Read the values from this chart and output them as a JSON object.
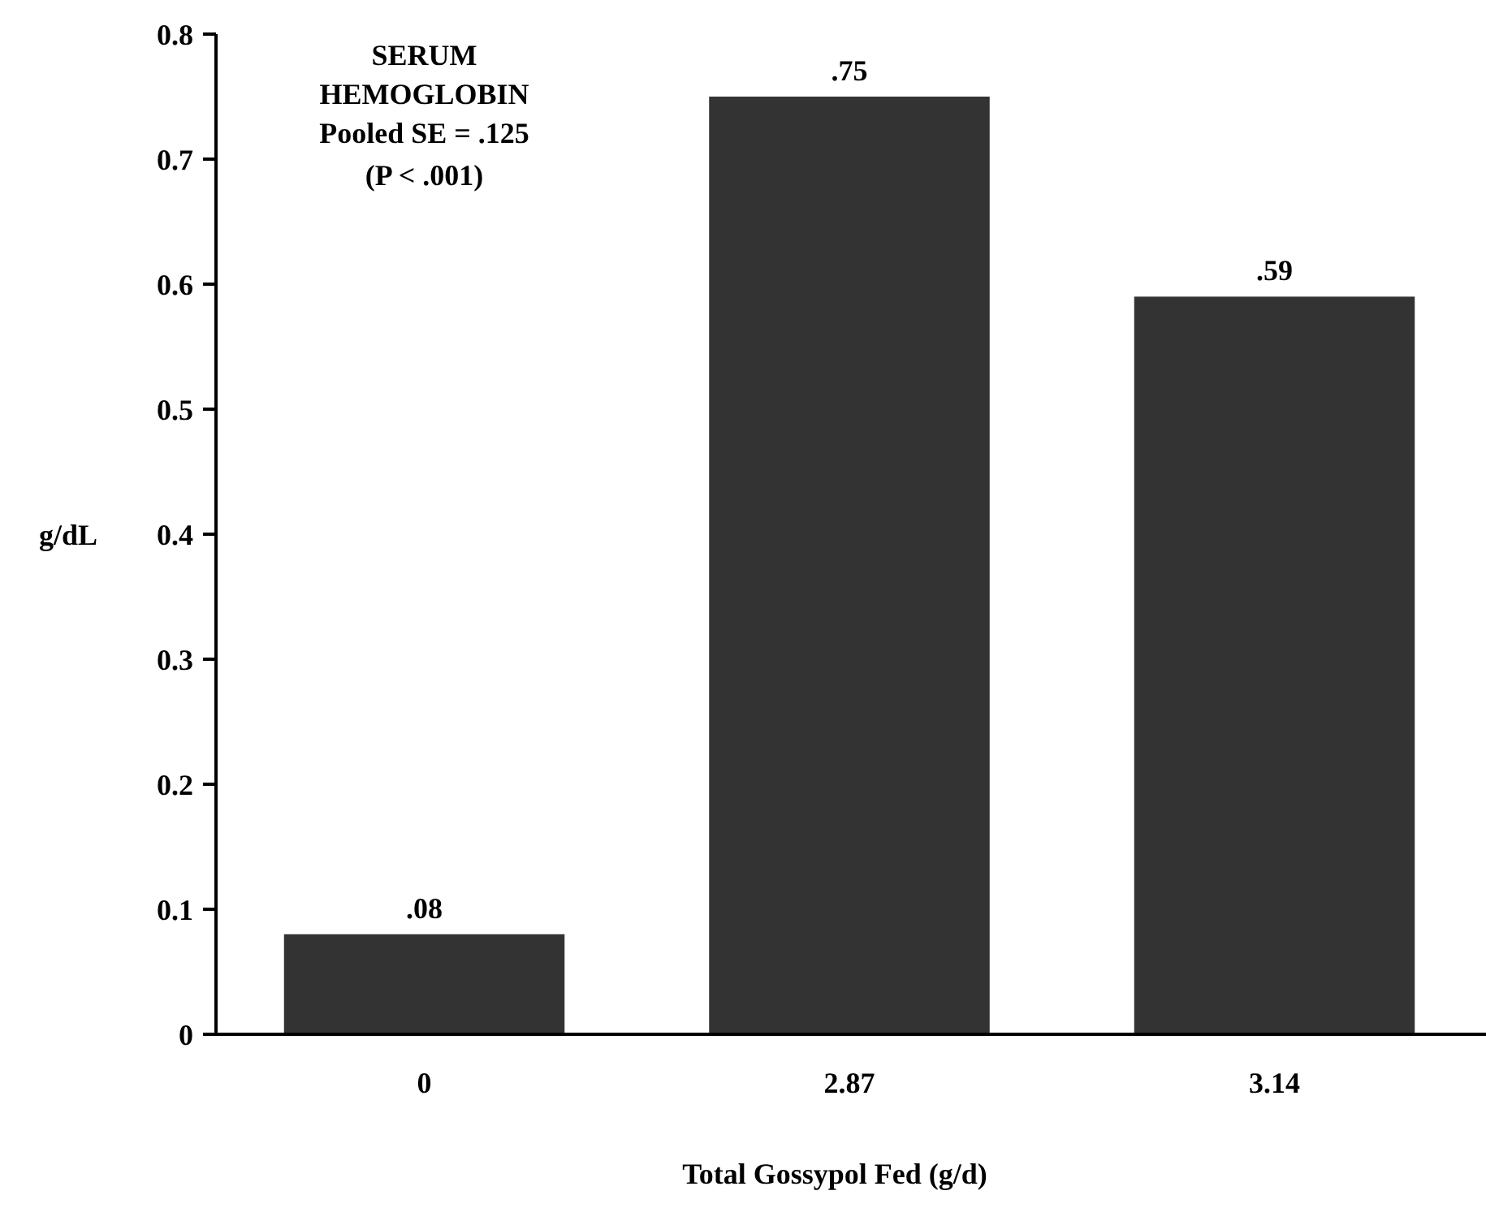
{
  "chart_data": {
    "type": "bar",
    "title": "SERUM HEMOGLOBIN",
    "annotations": [
      "Pooled SE = .125",
      "(P < .001)"
    ],
    "xlabel": "Total Gossypol Fed (g/d)",
    "ylabel": "g/dL",
    "categories": [
      "0",
      "2.87",
      "3.14"
    ],
    "values": [
      0.08,
      0.75,
      0.59
    ],
    "value_labels": [
      ".08",
      ".75",
      ".59"
    ],
    "color": "#333333",
    "ylim": [
      0,
      0.8
    ],
    "yticks": [
      0,
      0.1,
      0.2,
      0.3,
      0.4,
      0.5,
      0.6,
      0.7,
      0.8
    ],
    "grid": false
  }
}
